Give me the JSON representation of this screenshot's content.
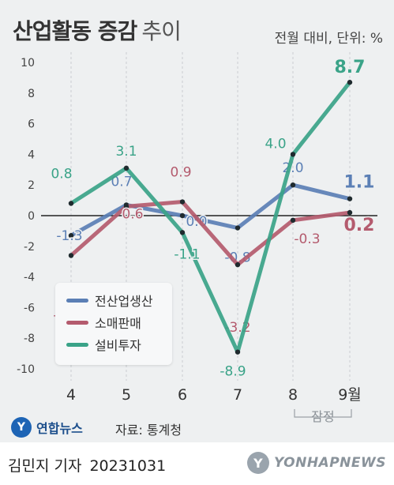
{
  "title_strong": "산업활동 증감",
  "title_light": "추이",
  "unit": "전월 대비, 단위: %",
  "legend": {
    "items": [
      "전산업생산",
      "소매판매",
      "설비투자"
    ]
  },
  "preliminary_label": "잠정",
  "agency_logo_text": "연합뉴스",
  "source": "자료: 통계청",
  "reporter": "김민지 기자",
  "date": "20231031",
  "watermark": "YONHAPNEWS",
  "chart_data": {
    "type": "line",
    "categories": [
      "4",
      "5",
      "6",
      "7",
      "8",
      "9월"
    ],
    "ylim": [
      -10,
      10
    ],
    "yticks": [
      10,
      8,
      6,
      4,
      2,
      0,
      -2,
      -4,
      -6,
      -8,
      -10
    ],
    "grid": false,
    "legend_position": "bottom-left",
    "series": [
      {
        "name": "전산업생산",
        "values": [
          -1.3,
          0.7,
          0.0,
          -0.8,
          2.0,
          1.1
        ],
        "labels": [
          "-1.3",
          "0.7",
          "0.0",
          "-0.8",
          "2.0",
          "1.1"
        ],
        "color": "#5b7fb5"
      },
      {
        "name": "소매판매",
        "values": [
          -2.6,
          0.6,
          0.9,
          -3.2,
          -0.3,
          0.2
        ],
        "labels": [
          "-2.6",
          "0.6",
          "0.9",
          "-3.2",
          "-0.3",
          "0.2"
        ],
        "color": "#b45b6e"
      },
      {
        "name": "설비투자",
        "values": [
          0.8,
          3.1,
          -1.1,
          -8.9,
          4.0,
          8.7
        ],
        "labels": [
          "0.8",
          "3.1",
          "-1.1",
          "-8.9",
          "4.0",
          "8.7"
        ],
        "color": "#3aa388"
      }
    ]
  }
}
